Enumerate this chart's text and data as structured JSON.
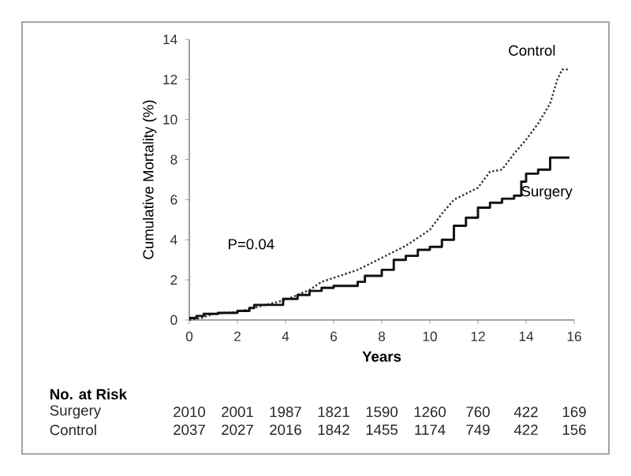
{
  "chart_data": {
    "type": "line",
    "xlabel": "Years",
    "ylabel": "Cumulative Mortality (%)",
    "xlim": [
      0,
      16
    ],
    "ylim": [
      0,
      14
    ],
    "xticks": [
      0,
      2,
      4,
      6,
      8,
      10,
      12,
      14,
      16
    ],
    "yticks": [
      0,
      2,
      4,
      6,
      8,
      10,
      12,
      14
    ],
    "series": [
      {
        "name": "Control",
        "type": "line",
        "line_style": "dotted",
        "color": "#333333",
        "x": [
          0,
          0.5,
          1,
          2,
          3,
          4,
          5,
          5.5,
          6,
          7,
          8,
          9,
          10,
          10.5,
          11,
          12,
          12.5,
          13,
          13.5,
          14,
          14.5,
          15,
          15.3,
          15.5,
          15.8
        ],
        "values": [
          0,
          0.1,
          0.3,
          0.4,
          0.7,
          1.0,
          1.5,
          1.9,
          2.1,
          2.5,
          3.1,
          3.7,
          4.5,
          5.3,
          6.0,
          6.6,
          7.4,
          7.5,
          8.3,
          9.0,
          9.8,
          10.8,
          12.0,
          12.5,
          12.5
        ]
      },
      {
        "name": "Surgery",
        "type": "step",
        "line_style": "solid",
        "color": "#111111",
        "x": [
          0,
          0.3,
          0.6,
          1.2,
          2,
          2.5,
          2.7,
          3.7,
          3.9,
          4.5,
          5,
          5.5,
          6,
          7,
          7.3,
          8,
          8.5,
          9,
          9.5,
          10,
          10.5,
          11,
          11.5,
          12,
          12.5,
          13,
          13.5,
          13.8,
          14,
          14.5,
          15,
          15.8
        ],
        "values": [
          0.1,
          0.2,
          0.3,
          0.35,
          0.45,
          0.6,
          0.75,
          0.75,
          1.05,
          1.25,
          1.45,
          1.6,
          1.7,
          1.9,
          2.2,
          2.5,
          3.0,
          3.2,
          3.5,
          3.65,
          4.0,
          4.7,
          5.1,
          5.6,
          5.85,
          6.05,
          6.2,
          6.9,
          7.3,
          7.5,
          8.1,
          8.1
        ]
      }
    ],
    "annotations": [
      "P=0.04",
      "No. at Risk",
      "Surgery",
      "2010",
      "2001",
      "1987",
      "1821",
      "1590",
      "1260",
      "760",
      "422",
      "169",
      "Control",
      "2037",
      "2027",
      "2016",
      "1842",
      "1455",
      "1174",
      "749",
      "422",
      "156"
    ]
  }
}
